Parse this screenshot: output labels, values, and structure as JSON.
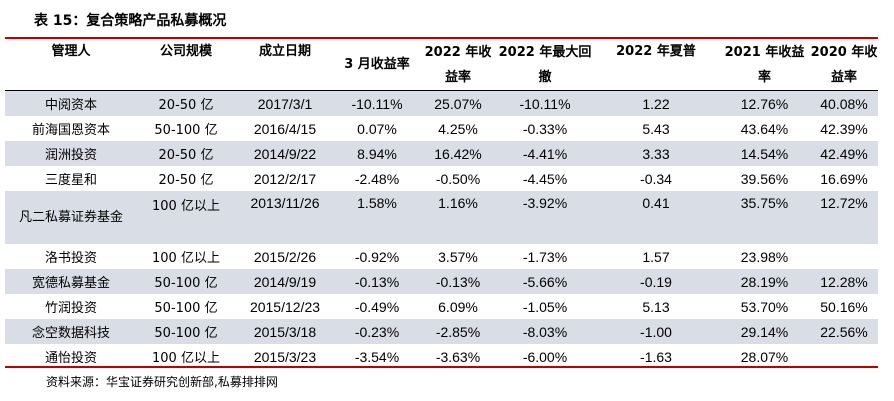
{
  "title": "表 15：复合策略产品私募概况",
  "table": {
    "headers": [
      "管理人",
      "公司规模",
      "成立日期",
      "3 月收益率",
      "2022 年收益率",
      "2022 年最大回撤",
      "2022 年夏普",
      "2021 年收益率",
      "2020 年收益率"
    ],
    "rows": [
      [
        "中阅资本",
        "20-50 亿",
        "2017/3/1",
        "-10.11%",
        "25.07%",
        "-10.11%",
        "1.22",
        "12.76%",
        "40.08%"
      ],
      [
        "前海国恩资本",
        "50-100 亿",
        "2016/4/15",
        "0.07%",
        "4.25%",
        "-0.33%",
        "5.43",
        "43.64%",
        "42.39%"
      ],
      [
        "润洲投资",
        "20-50 亿",
        "2014/9/22",
        "8.94%",
        "16.42%",
        "-4.41%",
        "3.33",
        "14.54%",
        "42.49%"
      ],
      [
        "三度星和",
        "20-50 亿",
        "2012/2/17",
        "-2.48%",
        "-0.50%",
        "-4.45%",
        "-0.34",
        "39.56%",
        "16.69%"
      ],
      [
        "凡二私募证券基金",
        "100 亿以上",
        "2013/11/26",
        "1.58%",
        "1.16%",
        "-3.92%",
        "0.41",
        "35.75%",
        "12.72%"
      ],
      [
        "洛书投资",
        "100 亿以上",
        "2015/2/26",
        "-0.92%",
        "3.57%",
        "-1.73%",
        "1.57",
        "23.98%",
        ""
      ],
      [
        "宽德私募基金",
        "50-100 亿",
        "2014/9/19",
        "-0.13%",
        "-0.13%",
        "-5.66%",
        "-0.19",
        "28.19%",
        "12.28%"
      ],
      [
        "竹润投资",
        "50-100 亿",
        "2015/12/23",
        "-0.49%",
        "6.09%",
        "-1.05%",
        "5.13",
        "53.70%",
        "50.16%"
      ],
      [
        "念空数据科技",
        "50-100 亿",
        "2015/3/18",
        "-0.23%",
        "-2.85%",
        "-8.03%",
        "-1.00",
        "29.14%",
        "22.56%"
      ],
      [
        "通怡投资",
        "100 亿以上",
        "2015/3/23",
        "-3.54%",
        "-3.63%",
        "-6.00%",
        "-1.63",
        "28.07%",
        ""
      ]
    ]
  },
  "source": "资料来源：华宝证券研究创新部,私募排排网",
  "colors": {
    "rule": "#c00000",
    "row_shade": "#d9dde5"
  }
}
